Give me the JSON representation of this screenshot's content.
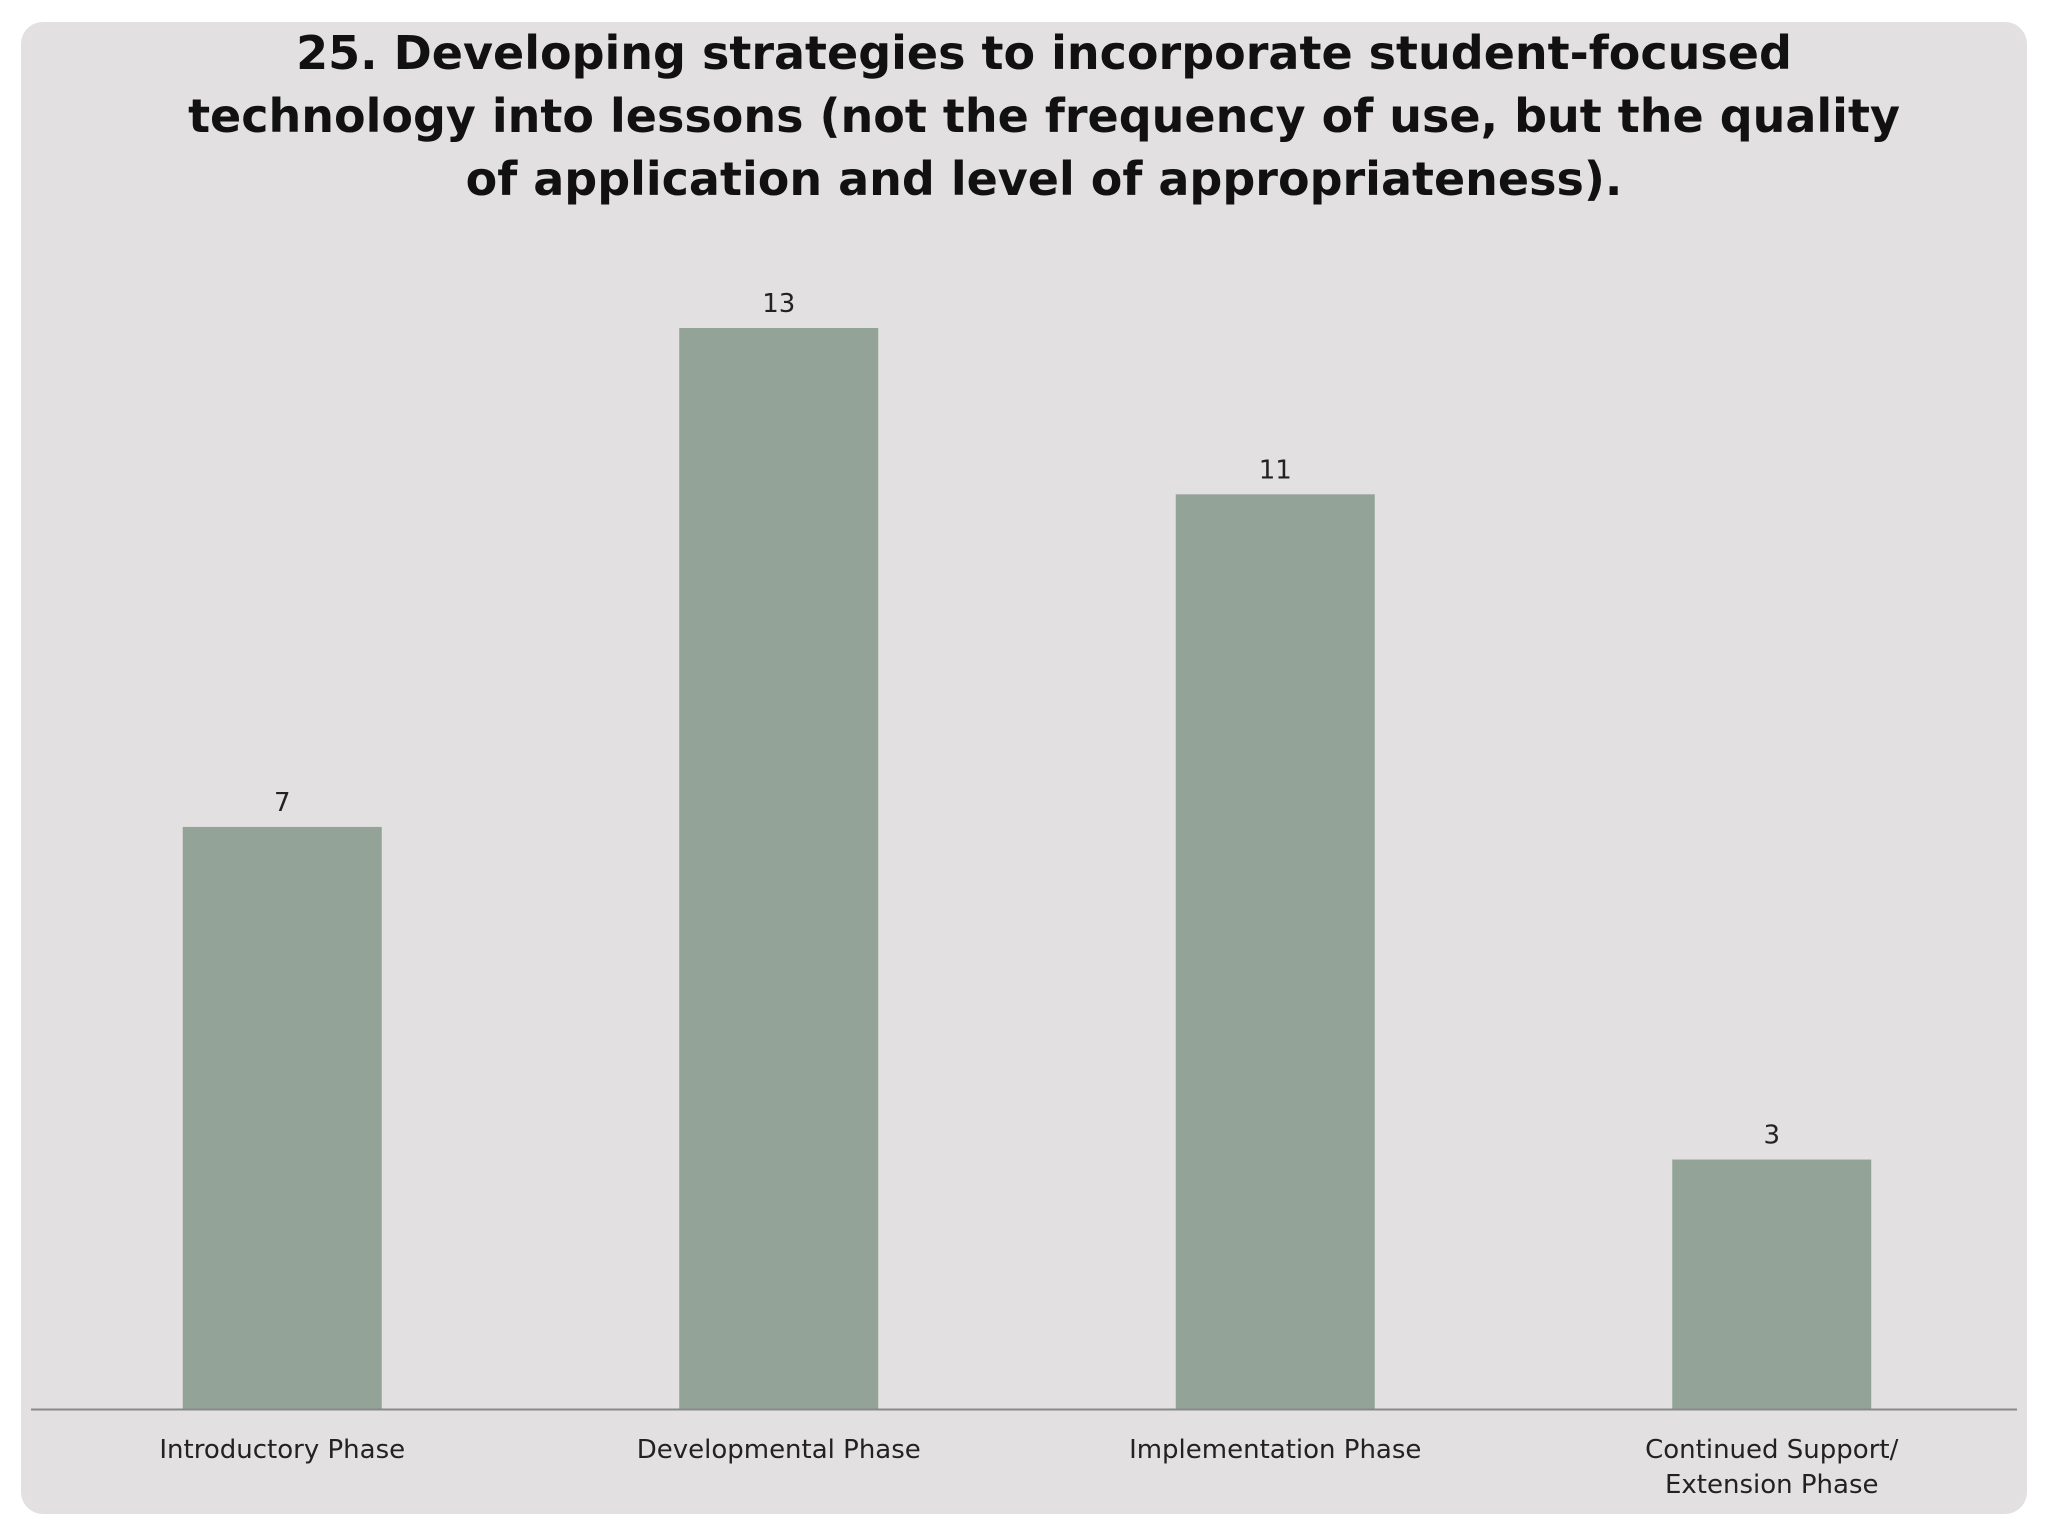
{
  "chart_data": {
    "type": "bar",
    "title": "25. Developing strategies to incorporate student-focused\ntechnology into lessons (not the frequency of use, but the quality\nof application and level of appropriateness).",
    "categories": [
      "Introductory Phase",
      "Developmental Phase",
      "Implementation Phase",
      "Continued Support/ Extension Phase"
    ],
    "values": [
      7,
      13,
      11,
      3
    ],
    "data_labels": [
      "7",
      "13",
      "11",
      "3"
    ],
    "xlabel": "",
    "ylabel": "",
    "ylim": [
      0,
      13
    ],
    "grid": false,
    "legend": "none",
    "colors": {
      "bar": "#93a398",
      "axis": "#8a8a8a",
      "background": "#e2e0e0"
    }
  }
}
